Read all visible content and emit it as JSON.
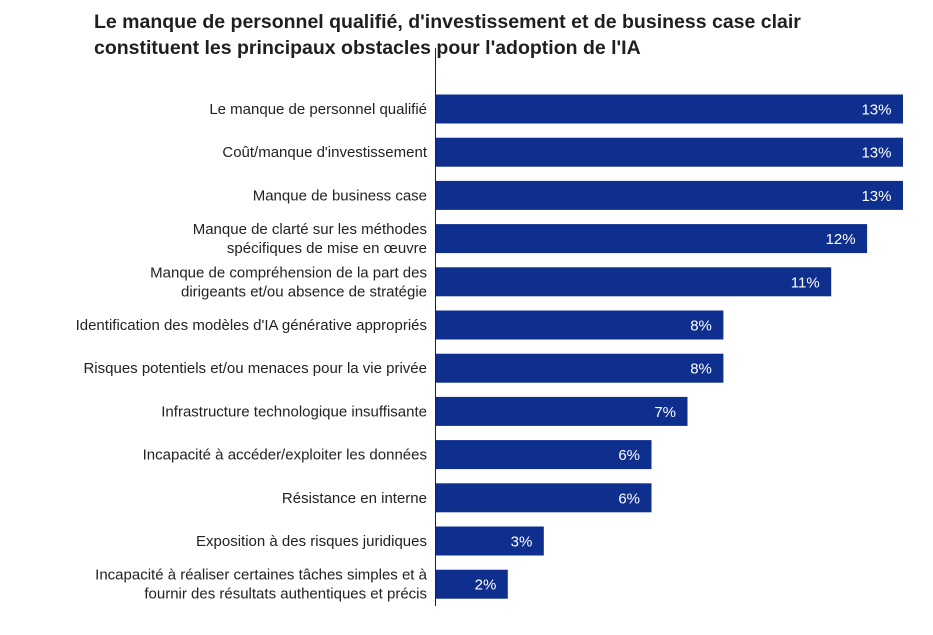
{
  "title_line1": "Le manque de personnel qualifié, d'investissement et de business case clair",
  "title_line2": "constituent les principaux obstacles pour l'adoption de l'IA",
  "colors": {
    "bar": "#0e2f8e",
    "label_text": "#ffffff",
    "axis": "#222222"
  },
  "chart_data": {
    "type": "bar",
    "orientation": "horizontal",
    "title": "Le manque de personnel qualifié, d'investissement et de business case clair constituent les principaux obstacles pour l'adoption de l'IA",
    "categories": [
      [
        "Le manque de personnel qualifié"
      ],
      [
        "Coût/manque d'investissement"
      ],
      [
        "Manque de business case"
      ],
      [
        "Manque de clarté sur les méthodes",
        "spécifiques de mise en œuvre"
      ],
      [
        "Manque de compréhension de la part des",
        "dirigeants et/ou absence de stratégie"
      ],
      [
        "Identification des modèles d'IA générative appropriés"
      ],
      [
        "Risques potentiels et/ou menaces pour la vie privée"
      ],
      [
        "Infrastructure technologique insuffisante"
      ],
      [
        "Incapacité à accéder/exploiter les données"
      ],
      [
        "Résistance en interne"
      ],
      [
        "Exposition à des risques juridiques"
      ],
      [
        "Incapacité à réaliser certaines tâches simples et à",
        "fournir des résultats authentiques et précis"
      ]
    ],
    "values": [
      13,
      13,
      13,
      12,
      11,
      8,
      8,
      7,
      6,
      6,
      3,
      2
    ],
    "data_labels": [
      "13%",
      "13%",
      "13%",
      "12%",
      "11%",
      "8%",
      "8%",
      "7%",
      "6%",
      "6%",
      "3%",
      "2%"
    ],
    "xlim": [
      0,
      13
    ],
    "grid": false,
    "legend": "none"
  }
}
